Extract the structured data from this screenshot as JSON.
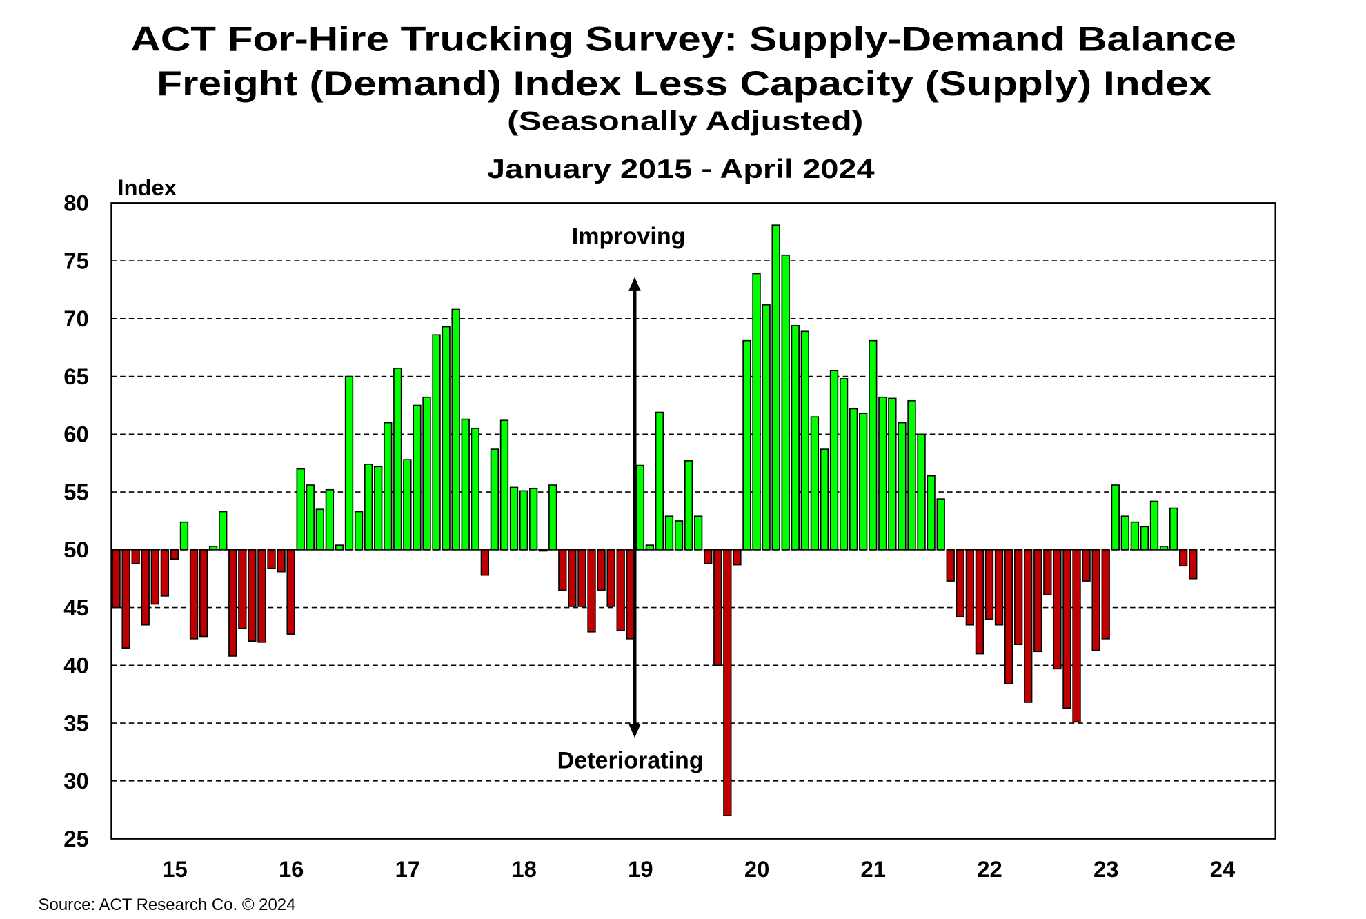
{
  "chart_data": {
    "type": "bar",
    "title": "ACT For-Hire Trucking Survey: Supply-Demand Balance",
    "title2": "Freight (Demand) Index Less Capacity (Supply) Index",
    "subtitle": "(Seasonally Adjusted)",
    "period": "January 2015 - April 2024",
    "ylabel": "Index",
    "xlabel": "",
    "ylim": [
      25,
      80
    ],
    "baseline": 50,
    "yticks": [
      "80",
      "75",
      "70",
      "65",
      "60",
      "55",
      "50",
      "45",
      "40",
      "35",
      "30",
      "25"
    ],
    "xticks": [
      "15",
      "16",
      "17",
      "18",
      "19",
      "20",
      "21",
      "22",
      "23",
      "24"
    ],
    "grid": true,
    "start": "January 2015",
    "end": "April 2024",
    "frequency": "monthly",
    "values": [
      45.0,
      41.5,
      48.8,
      43.5,
      45.3,
      46.0,
      49.2,
      52.4,
      42.3,
      42.5,
      50.3,
      53.3,
      40.8,
      43.2,
      42.1,
      42.0,
      48.4,
      48.1,
      42.7,
      57.0,
      55.6,
      53.5,
      55.2,
      50.4,
      65.0,
      53.3,
      57.4,
      57.2,
      61.0,
      65.7,
      57.8,
      62.5,
      63.2,
      68.6,
      69.3,
      70.8,
      61.3,
      60.5,
      47.8,
      58.7,
      61.2,
      55.4,
      55.1,
      55.3,
      49.9,
      55.6,
      46.5,
      45.1,
      45.1,
      42.9,
      46.5,
      45.1,
      43.0,
      42.3,
      57.3,
      50.4,
      61.9,
      52.9,
      52.5,
      57.7,
      52.9,
      48.8,
      40.0,
      27.0,
      48.7,
      68.1,
      73.9,
      71.2,
      78.1,
      75.5,
      69.4,
      68.9,
      61.5,
      58.7,
      65.5,
      64.8,
      62.2,
      61.8,
      68.1,
      63.2,
      63.1,
      61.0,
      62.9,
      60.0,
      56.4,
      54.4,
      47.3,
      44.2,
      43.5,
      41.0,
      44.0,
      43.5,
      38.4,
      41.8,
      36.8,
      41.2,
      46.1,
      39.7,
      36.3,
      35.1,
      47.3,
      41.3,
      42.3,
      55.6,
      52.9,
      52.4,
      52.0,
      54.2,
      50.3,
      53.6,
      48.6,
      47.5
    ],
    "colors": {
      "above": "#00ff00",
      "below": "#c00000"
    },
    "annotations": {
      "up": "Improving",
      "down": "Deteriorating"
    },
    "source": "Source:  ACT Research  Co. © 2024"
  }
}
